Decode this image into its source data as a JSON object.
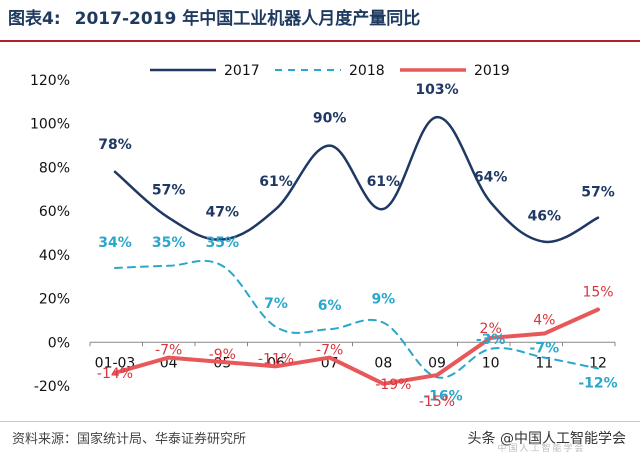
{
  "header": {
    "figure_label": "图表4:",
    "title": "2017-2019 年中国工业机器人月度产量同比"
  },
  "footer": {
    "source": "资料来源：国家统计局、华泰证券研究所",
    "watermark": "头条 @中国人工智能学会",
    "watermark_sub": "中国人工智能学会"
  },
  "chart_data": {
    "type": "line",
    "categories": [
      "01-03",
      "04",
      "05",
      "06",
      "07",
      "08",
      "09",
      "10",
      "11",
      "12"
    ],
    "ylim": [
      -20,
      120
    ],
    "yticks": [
      -20,
      0,
      20,
      40,
      60,
      80,
      100,
      120
    ],
    "ytick_suffix": "%",
    "grid": false,
    "legend": "top",
    "series": [
      {
        "name": "2017",
        "style": "solid-smooth",
        "color": "#1f3864",
        "label_color": "#1f3864",
        "values": [
          78,
          57,
          47,
          61,
          90,
          61,
          103,
          64,
          46,
          57
        ],
        "labels": [
          "78%",
          "57%",
          "47%",
          "61%",
          "90%",
          "61%",
          "103%",
          "64%",
          "46%",
          "57%"
        ]
      },
      {
        "name": "2018",
        "style": "dashed-smooth",
        "color": "#2aa7cc",
        "label_color": "#2aa7cc",
        "values": [
          34,
          35,
          35,
          7,
          6,
          9,
          -16,
          -3,
          -7,
          -12
        ],
        "labels": [
          "34%",
          "35%",
          "35%",
          "7%",
          "6%",
          "9%",
          "-16%",
          "-3%",
          "-7%",
          "-12%"
        ]
      },
      {
        "name": "2019",
        "style": "solid",
        "color": "#e8585a",
        "label_color": "#d9363e",
        "values": [
          -14,
          -7,
          -9,
          -11,
          -7,
          -19,
          -15,
          2,
          4,
          15
        ],
        "labels": [
          "-14%",
          "-7%",
          "-9%",
          "-11%",
          "-7%",
          "-19%",
          "-15%",
          "2%",
          "4%",
          "15%"
        ]
      }
    ]
  }
}
